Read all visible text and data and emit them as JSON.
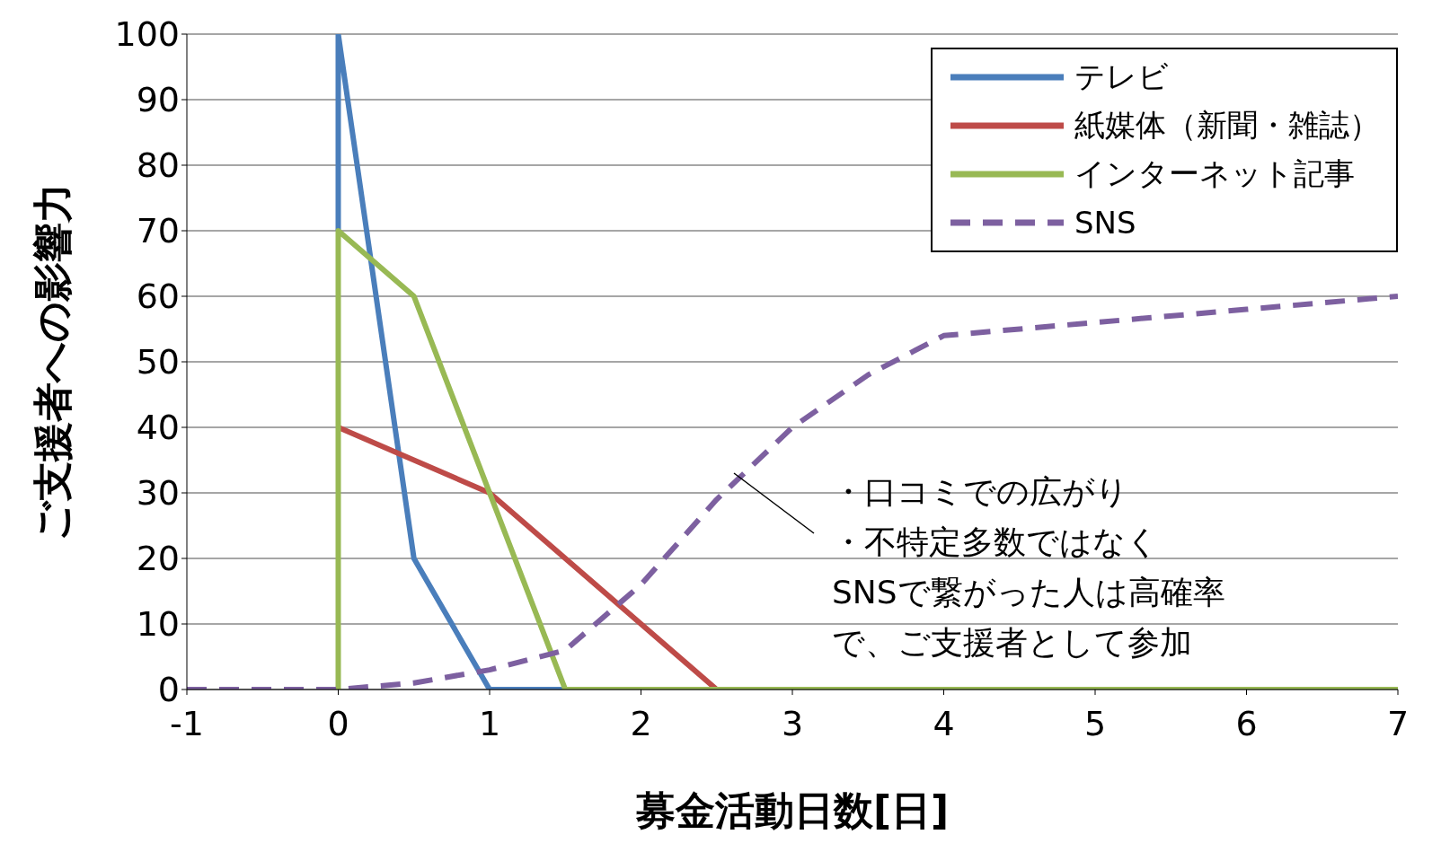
{
  "chart_data": {
    "type": "line",
    "xlabel": "募金活動日数[日]",
    "ylabel": "ご支援者への影響力",
    "xlim": [
      -1,
      7
    ],
    "xticks": [
      -1,
      0,
      1,
      2,
      3,
      4,
      5,
      6,
      7
    ],
    "ylim": [
      0,
      100
    ],
    "yticks": [
      0,
      10,
      20,
      30,
      40,
      50,
      60,
      70,
      80,
      90,
      100
    ],
    "grid": "y",
    "legend": "top right",
    "marker": "none",
    "series": [
      {
        "name": "テレビ",
        "color": "#4a7ebb",
        "x": [
          0,
          0,
          0.5,
          1,
          1.5
        ],
        "values": [
          70,
          100,
          20,
          0,
          0
        ]
      },
      {
        "name": "紙媒体（新聞・雑誌）",
        "color": "#be4b48",
        "x": [
          0,
          1,
          2.5
        ],
        "values": [
          40,
          30,
          0
        ]
      },
      {
        "name": "インターネット記事",
        "color": "#98b954",
        "x": [
          0,
          0,
          0.5,
          1.5,
          7
        ],
        "values": [
          0,
          70,
          60,
          0,
          0
        ]
      },
      {
        "name": "SNS",
        "color": "#7d60a0",
        "line_style": "dashed",
        "x": [
          -1,
          0,
          0.5,
          1,
          1.5,
          2,
          2.5,
          3,
          3.5,
          4,
          5,
          6,
          7
        ],
        "values": [
          0,
          0,
          1,
          3,
          6,
          16,
          29,
          40,
          48,
          54,
          56,
          58,
          60
        ]
      }
    ],
    "annotations": [
      "・口コミでの広がり",
      "・不特定多数ではなく",
      "SNSで繋がった人は高確率で、ご支援者として参加"
    ]
  }
}
